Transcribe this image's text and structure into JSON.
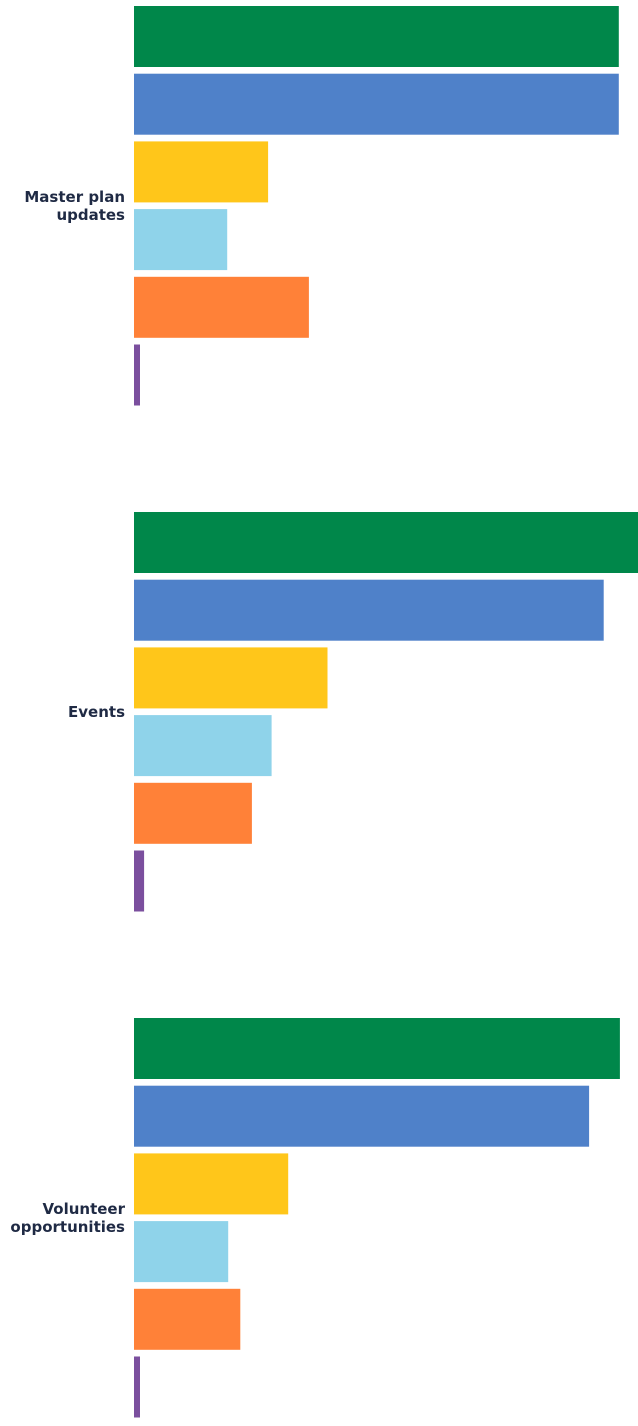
{
  "chart_data": {
    "type": "bar",
    "orientation": "horizontal",
    "title": "",
    "xlabel": "",
    "ylabel": "",
    "grid": false,
    "legend": "none",
    "axis_visible": false,
    "categories": [
      [
        "Master plan",
        "updates"
      ],
      [
        "Events"
      ],
      [
        "Volunteer",
        "opportunities"
      ]
    ],
    "xlim": [
      0,
      100
    ],
    "series": [
      {
        "color": "#00874a",
        "values": [
          96.2,
          100,
          96.4
        ]
      },
      {
        "color": "#4f81c9",
        "values": [
          96.2,
          93.2,
          90.3
        ]
      },
      {
        "color": "#ffc61a",
        "values": [
          26.6,
          38.4,
          30.6
        ]
      },
      {
        "color": "#8fd3ea",
        "values": [
          18.5,
          27.3,
          18.7
        ]
      },
      {
        "color": "#ff8138",
        "values": [
          34.7,
          23.4,
          21.1
        ]
      },
      {
        "color": "#7b4f9e",
        "values": [
          1.2,
          2.0,
          1.2
        ]
      }
    ]
  }
}
